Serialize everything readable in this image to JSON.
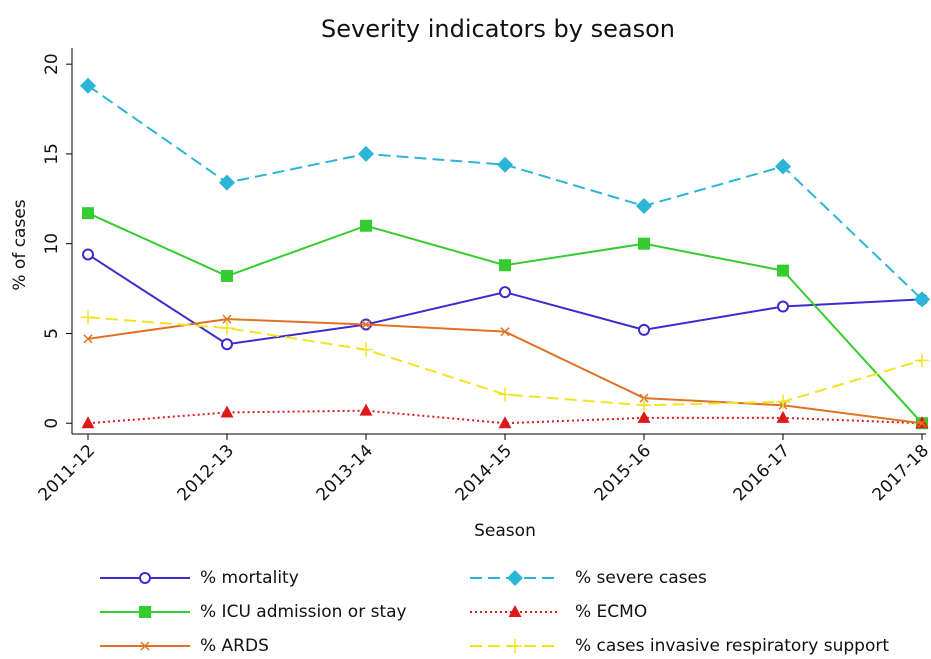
{
  "chart_data": {
    "type": "line",
    "title": "Severity indicators by season",
    "x_label": "Season",
    "y_label": "% of cases",
    "categories": [
      "2011-12",
      "2012-13",
      "2013-14",
      "2014-15",
      "2015-16",
      "2016-17",
      "2017-18"
    ],
    "ylim": [
      -0.6,
      20.9
    ],
    "yticks": [
      0,
      5,
      10,
      15,
      20
    ],
    "series": [
      {
        "name": "% mortality",
        "color": "#3b2ccf",
        "marker": "circle",
        "dash": "solid",
        "values": [
          9.4,
          4.4,
          5.5,
          7.3,
          5.2,
          6.5,
          6.9
        ]
      },
      {
        "name": "% severe cases",
        "color": "#2bb5d6",
        "marker": "diamond",
        "dash": "dashed",
        "values": [
          18.8,
          13.4,
          15.0,
          14.4,
          12.1,
          14.3,
          6.9
        ]
      },
      {
        "name": "% ICU admission or stay",
        "color": "#35cc2f",
        "marker": "square",
        "dash": "solid",
        "values": [
          11.7,
          8.2,
          11.0,
          8.8,
          10.0,
          8.5,
          0.0
        ]
      },
      {
        "name": "% ECMO",
        "color": "#dd1a1a",
        "marker": "triangle",
        "dash": "dotted",
        "values": [
          0.0,
          0.6,
          0.7,
          0.0,
          0.3,
          0.3,
          0.0
        ]
      },
      {
        "name": "% ARDS",
        "color": "#e07224",
        "marker": "x",
        "dash": "solid",
        "values": [
          4.7,
          5.8,
          5.5,
          5.1,
          1.4,
          1.0,
          0.0
        ]
      },
      {
        "name": "% cases invasive respiratory support",
        "color": "#f2e424",
        "marker": "plus",
        "dash": "dashed",
        "values": [
          5.9,
          5.3,
          4.1,
          1.6,
          1.0,
          1.2,
          3.5
        ]
      }
    ]
  }
}
